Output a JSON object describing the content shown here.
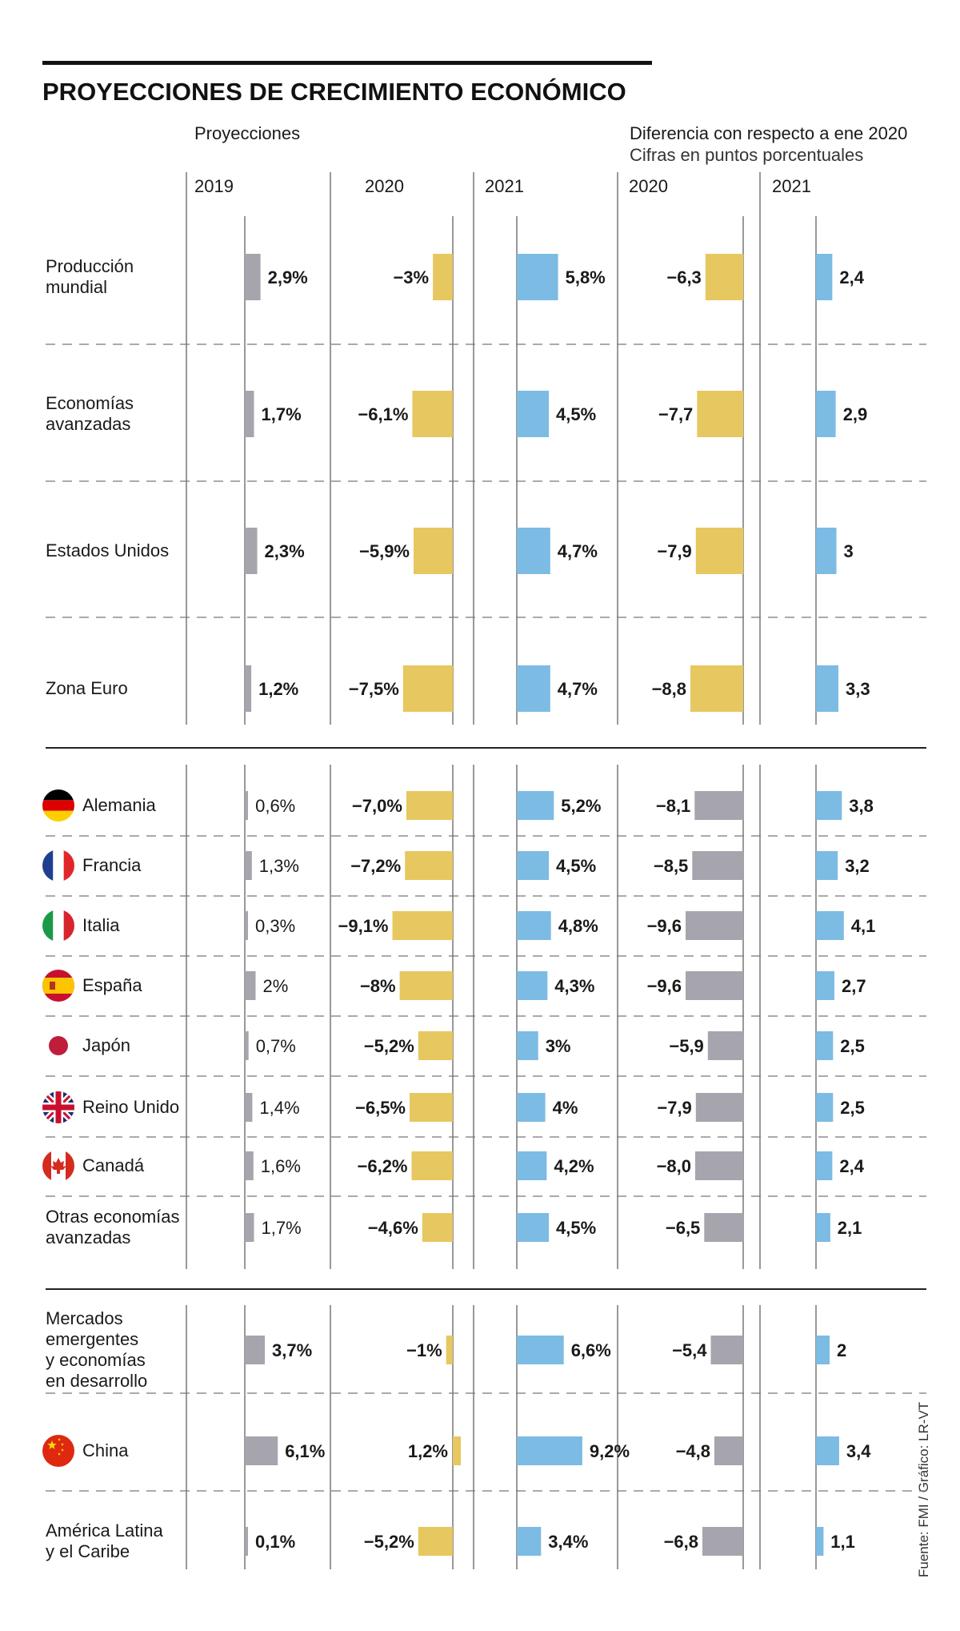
{
  "chart_data": {
    "type": "bar",
    "title": "PROYECCIONES DE CRECIMIENTO ECONÓMICO",
    "groups": {
      "proyecciones": {
        "header": "Proyecciones",
        "years": [
          "2019",
          "2020",
          "2021"
        ]
      },
      "diferencia": {
        "header": "Diferencia con respecto a ene 2020",
        "subheader": "Cifras en puntos porcentuales",
        "years": [
          "2020",
          "2021"
        ]
      }
    },
    "source": "Fuente: FMI / Gráfico: LR-VT",
    "colors": {
      "gray": "#a6a4ad",
      "yellow": "#e7c75f",
      "blue": "#7cbbe3"
    },
    "series": [
      {
        "name": "2019",
        "group": "Proyecciones",
        "unit": "%"
      },
      {
        "name": "2020",
        "group": "Proyecciones",
        "unit": "%"
      },
      {
        "name": "2021",
        "group": "Proyecciones",
        "unit": "%"
      },
      {
        "name": "2020",
        "group": "Diferencia con respecto a ene 2020",
        "unit": "puntos porcentuales"
      },
      {
        "name": "2021",
        "group": "Diferencia con respecto a ene 2020",
        "unit": "puntos porcentuales"
      }
    ],
    "rows": [
      {
        "label": [
          "Producción",
          "mundial"
        ],
        "section": "global",
        "values": [
          2.9,
          -3,
          5.8,
          -6.3,
          2.4
        ],
        "texts": [
          "2,9%",
          "−3%",
          "5,8%",
          "−6,3",
          "2,4"
        ]
      },
      {
        "label": [
          "Economías",
          "avanzadas"
        ],
        "section": "global",
        "values": [
          1.7,
          -6.1,
          4.5,
          -7.7,
          2.9
        ],
        "texts": [
          "1,7%",
          "−6,1%",
          "4,5%",
          "−7,7",
          "2,9"
        ]
      },
      {
        "label": [
          "Estados Unidos"
        ],
        "section": "global",
        "values": [
          2.3,
          -5.9,
          4.7,
          -7.9,
          3
        ],
        "texts": [
          "2,3%",
          "−5,9%",
          "4,7%",
          "−7,9",
          "3"
        ]
      },
      {
        "label": [
          "Zona Euro"
        ],
        "section": "global",
        "values": [
          1.2,
          -7.5,
          4.7,
          -8.8,
          3.3
        ],
        "texts": [
          "1,2%",
          "−7,5%",
          "4,7%",
          "−8,8",
          "3,3"
        ]
      },
      {
        "label": [
          "Alemania"
        ],
        "section": "avanzadas",
        "flag": "germany-flag",
        "values": [
          0.6,
          -7.0,
          5.2,
          -8.1,
          3.8
        ],
        "texts": [
          "0,6%",
          "−7,0%",
          "5,2%",
          "−8,1",
          "3,8"
        ]
      },
      {
        "label": [
          "Francia"
        ],
        "section": "avanzadas",
        "flag": "france-flag",
        "values": [
          1.3,
          -7.2,
          4.5,
          -8.5,
          3.2
        ],
        "texts": [
          "1,3%",
          "−7,2%",
          "4,5%",
          "−8,5",
          "3,2"
        ]
      },
      {
        "label": [
          "Italia"
        ],
        "section": "avanzadas",
        "flag": "italy-flag",
        "values": [
          0.3,
          -9.1,
          4.8,
          -9.6,
          4.1
        ],
        "texts": [
          "0,3%",
          "−9,1%",
          "4,8%",
          "−9,6",
          "4,1"
        ]
      },
      {
        "label": [
          "España"
        ],
        "section": "avanzadas",
        "flag": "spain-flag",
        "values": [
          2,
          -8,
          4.3,
          -9.6,
          2.7
        ],
        "texts": [
          "2%",
          "−8%",
          "4,3%",
          "−9,6",
          "2,7"
        ]
      },
      {
        "label": [
          "Japón"
        ],
        "section": "avanzadas",
        "flag": "japan-flag",
        "values": [
          0.7,
          -5.2,
          3,
          -5.9,
          2.5
        ],
        "texts": [
          "0,7%",
          "−5,2%",
          "3%",
          "−5,9",
          "2,5"
        ]
      },
      {
        "label": [
          "Reino Unido"
        ],
        "section": "avanzadas",
        "flag": "uk-flag",
        "values": [
          1.4,
          -6.5,
          4,
          -7.9,
          2.5
        ],
        "texts": [
          "1,4%",
          "−6,5%",
          "4%",
          "−7,9",
          "2,5"
        ]
      },
      {
        "label": [
          "Canadá"
        ],
        "section": "avanzadas",
        "flag": "canada-flag",
        "values": [
          1.6,
          -6.2,
          4.2,
          -8.0,
          2.4
        ],
        "texts": [
          "1,6%",
          "−6,2%",
          "4,2%",
          "−8,0",
          "2,4"
        ]
      },
      {
        "label": [
          "Otras economías",
          "avanzadas"
        ],
        "section": "avanzadas",
        "values": [
          1.7,
          -4.6,
          4.5,
          -6.5,
          2.1
        ],
        "texts": [
          "1,7%",
          "−4,6%",
          "4,5%",
          "−6,5",
          "2,1"
        ]
      },
      {
        "label": [
          "Mercados",
          "emergentes",
          "y economías",
          "en desarrollo"
        ],
        "section": "emergentes",
        "values": [
          3.7,
          -1,
          6.6,
          -5.4,
          2
        ],
        "texts": [
          "3,7%",
          "−1%",
          "6,6%",
          "−5,4",
          "2"
        ]
      },
      {
        "label": [
          "China"
        ],
        "section": "emergentes",
        "flag": "china-flag",
        "values": [
          6.1,
          1.2,
          9.2,
          -4.8,
          3.4
        ],
        "texts": [
          "6,1%",
          "1,2%",
          "9,2%",
          "−4,8",
          "3,4"
        ]
      },
      {
        "label": [
          "América Latina",
          "y el Caribe"
        ],
        "section": "emergentes",
        "values": [
          0.1,
          -5.2,
          3.4,
          -6.8,
          1.1
        ],
        "texts": [
          "0,1%",
          "−5,2%",
          "3,4%",
          "−6,8",
          "1,1"
        ]
      }
    ]
  }
}
